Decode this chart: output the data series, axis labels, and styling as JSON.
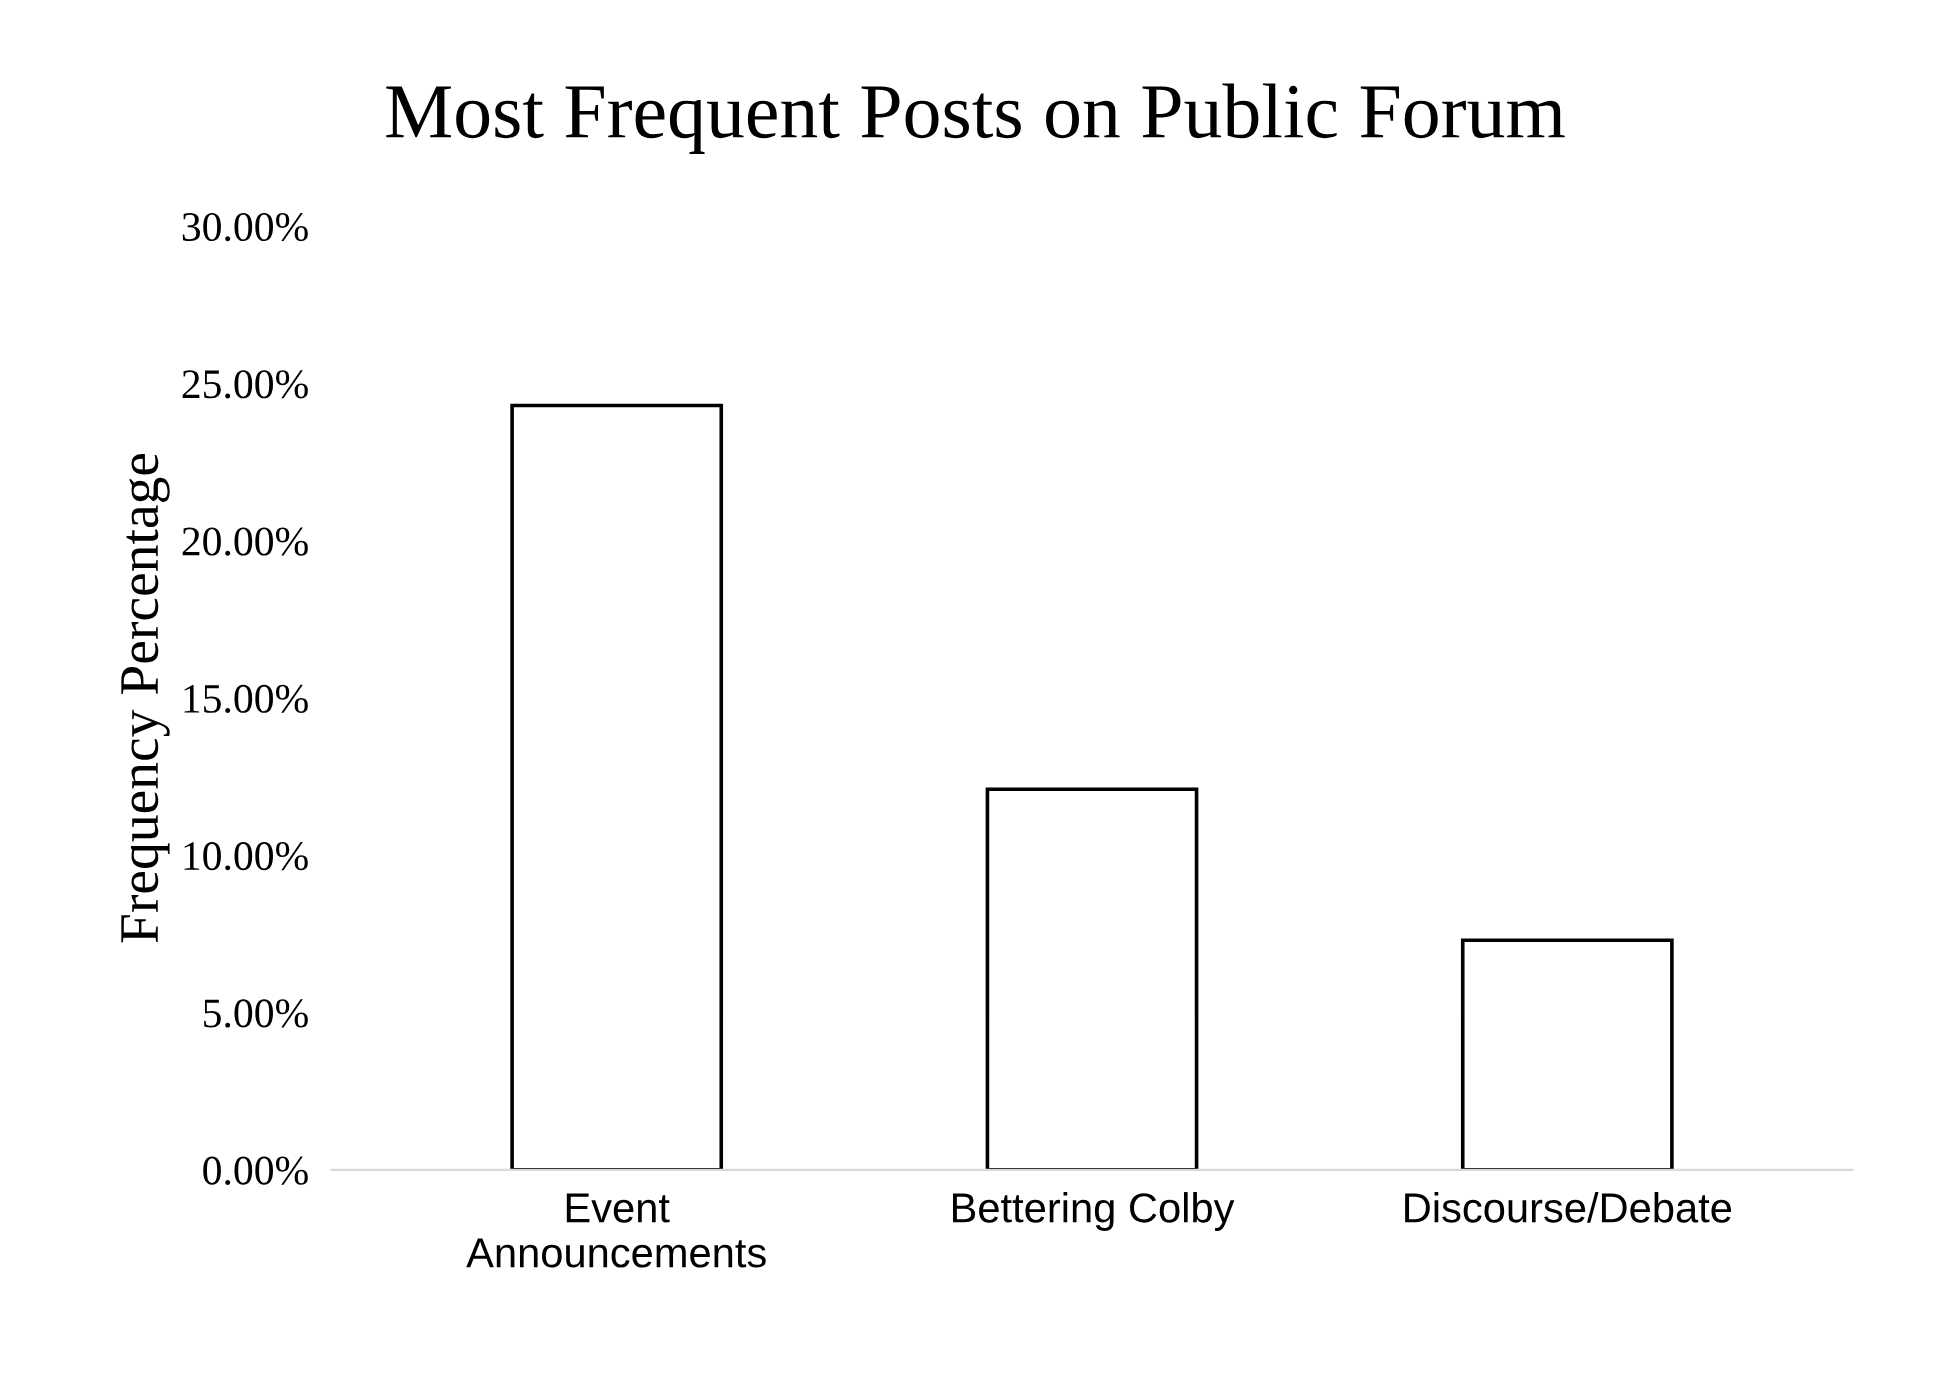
{
  "chart_data": {
    "type": "bar",
    "title": "Most Frequent Posts on Public Forum",
    "ylabel": "Frequency Percentage",
    "categories": [
      "Event\nAnnouncements",
      "Bettering Colby",
      "Discourse/Debate"
    ],
    "values": [
      24.3,
      12.1,
      7.3
    ],
    "color": "#ffffff",
    "ylim": [
      0,
      30
    ],
    "yticks": [
      {
        "value": 0,
        "label": "0.00%"
      },
      {
        "value": 5,
        "label": "5.00%"
      },
      {
        "value": 10,
        "label": "10.00%"
      },
      {
        "value": 15,
        "label": "15.00%"
      },
      {
        "value": 20,
        "label": "20.00%"
      },
      {
        "value": 25,
        "label": "25.00%"
      },
      {
        "value": 30,
        "label": "30.00%"
      }
    ],
    "grid": false,
    "legend": false
  }
}
